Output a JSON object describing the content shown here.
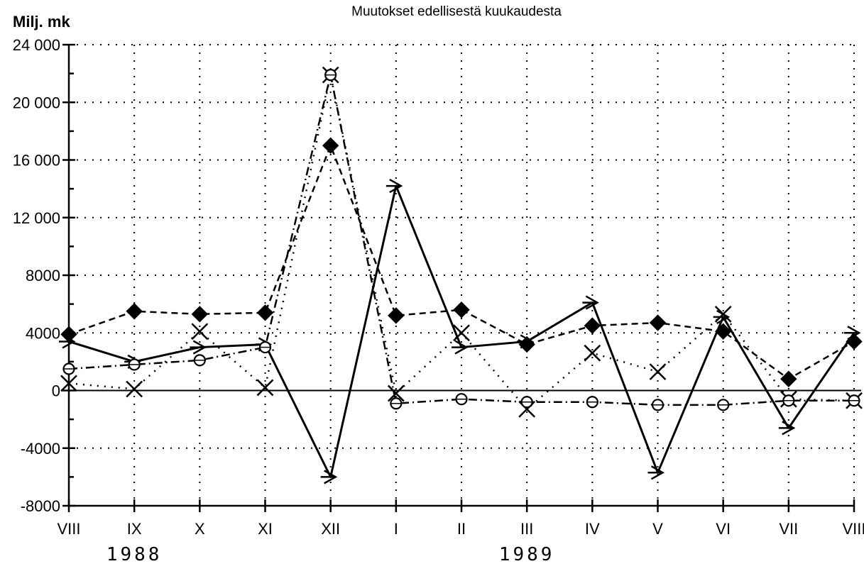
{
  "chart_data": {
    "type": "line",
    "title": "Muutokset edellisestä kuukaudesta",
    "unit_label": "Milj. mk",
    "categories": [
      "VIII",
      "IX",
      "X",
      "XI",
      "XII",
      "I",
      "II",
      "III",
      "IV",
      "V",
      "VI",
      "VII",
      "VIII"
    ],
    "year_labels": [
      {
        "text": "1988",
        "under_category_index": 1
      },
      {
        "text": "1989",
        "under_category_index": 7
      }
    ],
    "ylim": [
      -8000,
      24000
    ],
    "yticks": [
      -8000,
      -4000,
      0,
      4000,
      8000,
      12000,
      16000,
      20000,
      24000
    ],
    "ytick_labels": [
      "-8000",
      "-4000",
      "0",
      "4000",
      "8000",
      "12 000",
      "16 000",
      "20 000",
      "24 000"
    ],
    "grid": true,
    "series": [
      {
        "marker": "filled-diamond",
        "line_style": "dashed",
        "values": [
          3900,
          5500,
          5300,
          5400,
          17000,
          5200,
          5600,
          3200,
          4500,
          4700,
          4100,
          800,
          3400
        ]
      },
      {
        "marker": "triangle-right",
        "line_style": "solid",
        "values": [
          3400,
          2000,
          3000,
          3200,
          -6000,
          14200,
          3000,
          3400,
          6100,
          -5700,
          5100,
          -2600,
          4000
        ]
      },
      {
        "marker": "x-cross",
        "line_style": "dotted",
        "values": [
          500,
          100,
          4100,
          200,
          21900,
          -200,
          4000,
          -1300,
          2600,
          1300,
          5300,
          -600,
          -700
        ]
      },
      {
        "marker": "circle",
        "line_style": "dash-dot",
        "values": [
          1500,
          1800,
          2100,
          3000,
          21900,
          -900,
          -600,
          -800,
          -800,
          -1000,
          -1000,
          -700,
          -700
        ]
      }
    ]
  }
}
